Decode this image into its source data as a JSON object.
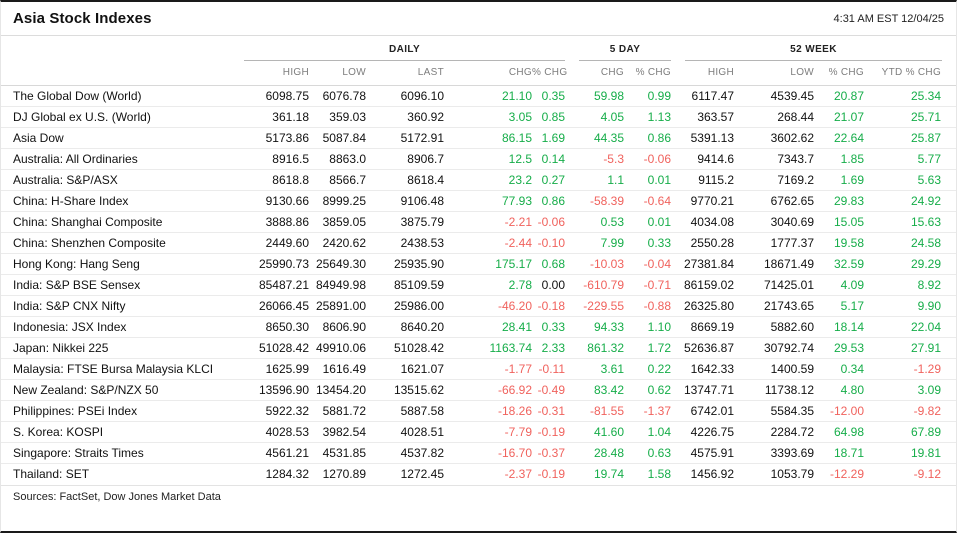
{
  "header": {
    "title": "Asia Stock Indexes",
    "timestamp": "4:31 AM EST 12/04/25"
  },
  "colors": {
    "positive": "#16ad49",
    "negative": "#f0625d",
    "neutral": "#111111"
  },
  "table": {
    "groups": [
      {
        "label": "DAILY"
      },
      {
        "label": "5 DAY"
      },
      {
        "label": "52 WEEK"
      }
    ],
    "columns": [
      "",
      "HIGH",
      "LOW",
      "LAST",
      "CHG",
      "% CHG",
      "CHG",
      "% CHG",
      "HIGH",
      "LOW",
      "% CHG",
      "YTD % CHG"
    ],
    "signed_columns": [
      4,
      5,
      6,
      7,
      10,
      11
    ],
    "rows": [
      [
        "The Global Dow (World)",
        "6098.75",
        "6076.78",
        "6096.10",
        "21.10",
        "0.35",
        "59.98",
        "0.99",
        "6117.47",
        "4539.45",
        "20.87",
        "25.34"
      ],
      [
        "DJ Global ex U.S. (World)",
        "361.18",
        "359.03",
        "360.92",
        "3.05",
        "0.85",
        "4.05",
        "1.13",
        "363.57",
        "268.44",
        "21.07",
        "25.71"
      ],
      [
        "Asia Dow",
        "5173.86",
        "5087.84",
        "5172.91",
        "86.15",
        "1.69",
        "44.35",
        "0.86",
        "5391.13",
        "3602.62",
        "22.64",
        "25.87"
      ],
      [
        "Australia: All Ordinaries",
        "8916.5",
        "8863.0",
        "8906.7",
        "12.5",
        "0.14",
        "-5.3",
        "-0.06",
        "9414.6",
        "7343.7",
        "1.85",
        "5.77"
      ],
      [
        "Australia: S&P/ASX",
        "8618.8",
        "8566.7",
        "8618.4",
        "23.2",
        "0.27",
        "1.1",
        "0.01",
        "9115.2",
        "7169.2",
        "1.69",
        "5.63"
      ],
      [
        "China: H-Share Index",
        "9130.66",
        "8999.25",
        "9106.48",
        "77.93",
        "0.86",
        "-58.39",
        "-0.64",
        "9770.21",
        "6762.65",
        "29.83",
        "24.92"
      ],
      [
        "China: Shanghai Composite",
        "3888.86",
        "3859.05",
        "3875.79",
        "-2.21",
        "-0.06",
        "0.53",
        "0.01",
        "4034.08",
        "3040.69",
        "15.05",
        "15.63"
      ],
      [
        "China: Shenzhen Composite",
        "2449.60",
        "2420.62",
        "2438.53",
        "-2.44",
        "-0.10",
        "7.99",
        "0.33",
        "2550.28",
        "1777.37",
        "19.58",
        "24.58"
      ],
      [
        "Hong Kong: Hang Seng",
        "25990.73",
        "25649.30",
        "25935.90",
        "175.17",
        "0.68",
        "-10.03",
        "-0.04",
        "27381.84",
        "18671.49",
        "32.59",
        "29.29"
      ],
      [
        "India: S&P BSE Sensex",
        "85487.21",
        "84949.98",
        "85109.59",
        "2.78",
        "0.00",
        "-610.79",
        "-0.71",
        "86159.02",
        "71425.01",
        "4.09",
        "8.92"
      ],
      [
        "India: S&P CNX Nifty",
        "26066.45",
        "25891.00",
        "25986.00",
        "-46.20",
        "-0.18",
        "-229.55",
        "-0.88",
        "26325.80",
        "21743.65",
        "5.17",
        "9.90"
      ],
      [
        "Indonesia: JSX Index",
        "8650.30",
        "8606.90",
        "8640.20",
        "28.41",
        "0.33",
        "94.33",
        "1.10",
        "8669.19",
        "5882.60",
        "18.14",
        "22.04"
      ],
      [
        "Japan: Nikkei 225",
        "51028.42",
        "49910.06",
        "51028.42",
        "1163.74",
        "2.33",
        "861.32",
        "1.72",
        "52636.87",
        "30792.74",
        "29.53",
        "27.91"
      ],
      [
        "Malaysia: FTSE Bursa Malaysia KLCI",
        "1625.99",
        "1616.49",
        "1621.07",
        "-1.77",
        "-0.11",
        "3.61",
        "0.22",
        "1642.33",
        "1400.59",
        "0.34",
        "-1.29"
      ],
      [
        "New Zealand: S&P/NZX 50",
        "13596.90",
        "13454.20",
        "13515.62",
        "-66.92",
        "-0.49",
        "83.42",
        "0.62",
        "13747.71",
        "11738.12",
        "4.80",
        "3.09"
      ],
      [
        "Philippines: PSEi Index",
        "5922.32",
        "5881.72",
        "5887.58",
        "-18.26",
        "-0.31",
        "-81.55",
        "-1.37",
        "6742.01",
        "5584.35",
        "-12.00",
        "-9.82"
      ],
      [
        "S. Korea: KOSPI",
        "4028.53",
        "3982.54",
        "4028.51",
        "-7.79",
        "-0.19",
        "41.60",
        "1.04",
        "4226.75",
        "2284.72",
        "64.98",
        "67.89"
      ],
      [
        "Singapore: Straits Times",
        "4561.21",
        "4531.85",
        "4537.82",
        "-16.70",
        "-0.37",
        "28.48",
        "0.63",
        "4575.91",
        "3393.69",
        "18.71",
        "19.81"
      ],
      [
        "Thailand: SET",
        "1284.32",
        "1270.89",
        "1272.45",
        "-2.37",
        "-0.19",
        "19.74",
        "1.58",
        "1456.92",
        "1053.79",
        "-12.29",
        "-9.12"
      ]
    ]
  },
  "footer": {
    "sources": "Sources: FactSet, Dow Jones Market Data"
  }
}
